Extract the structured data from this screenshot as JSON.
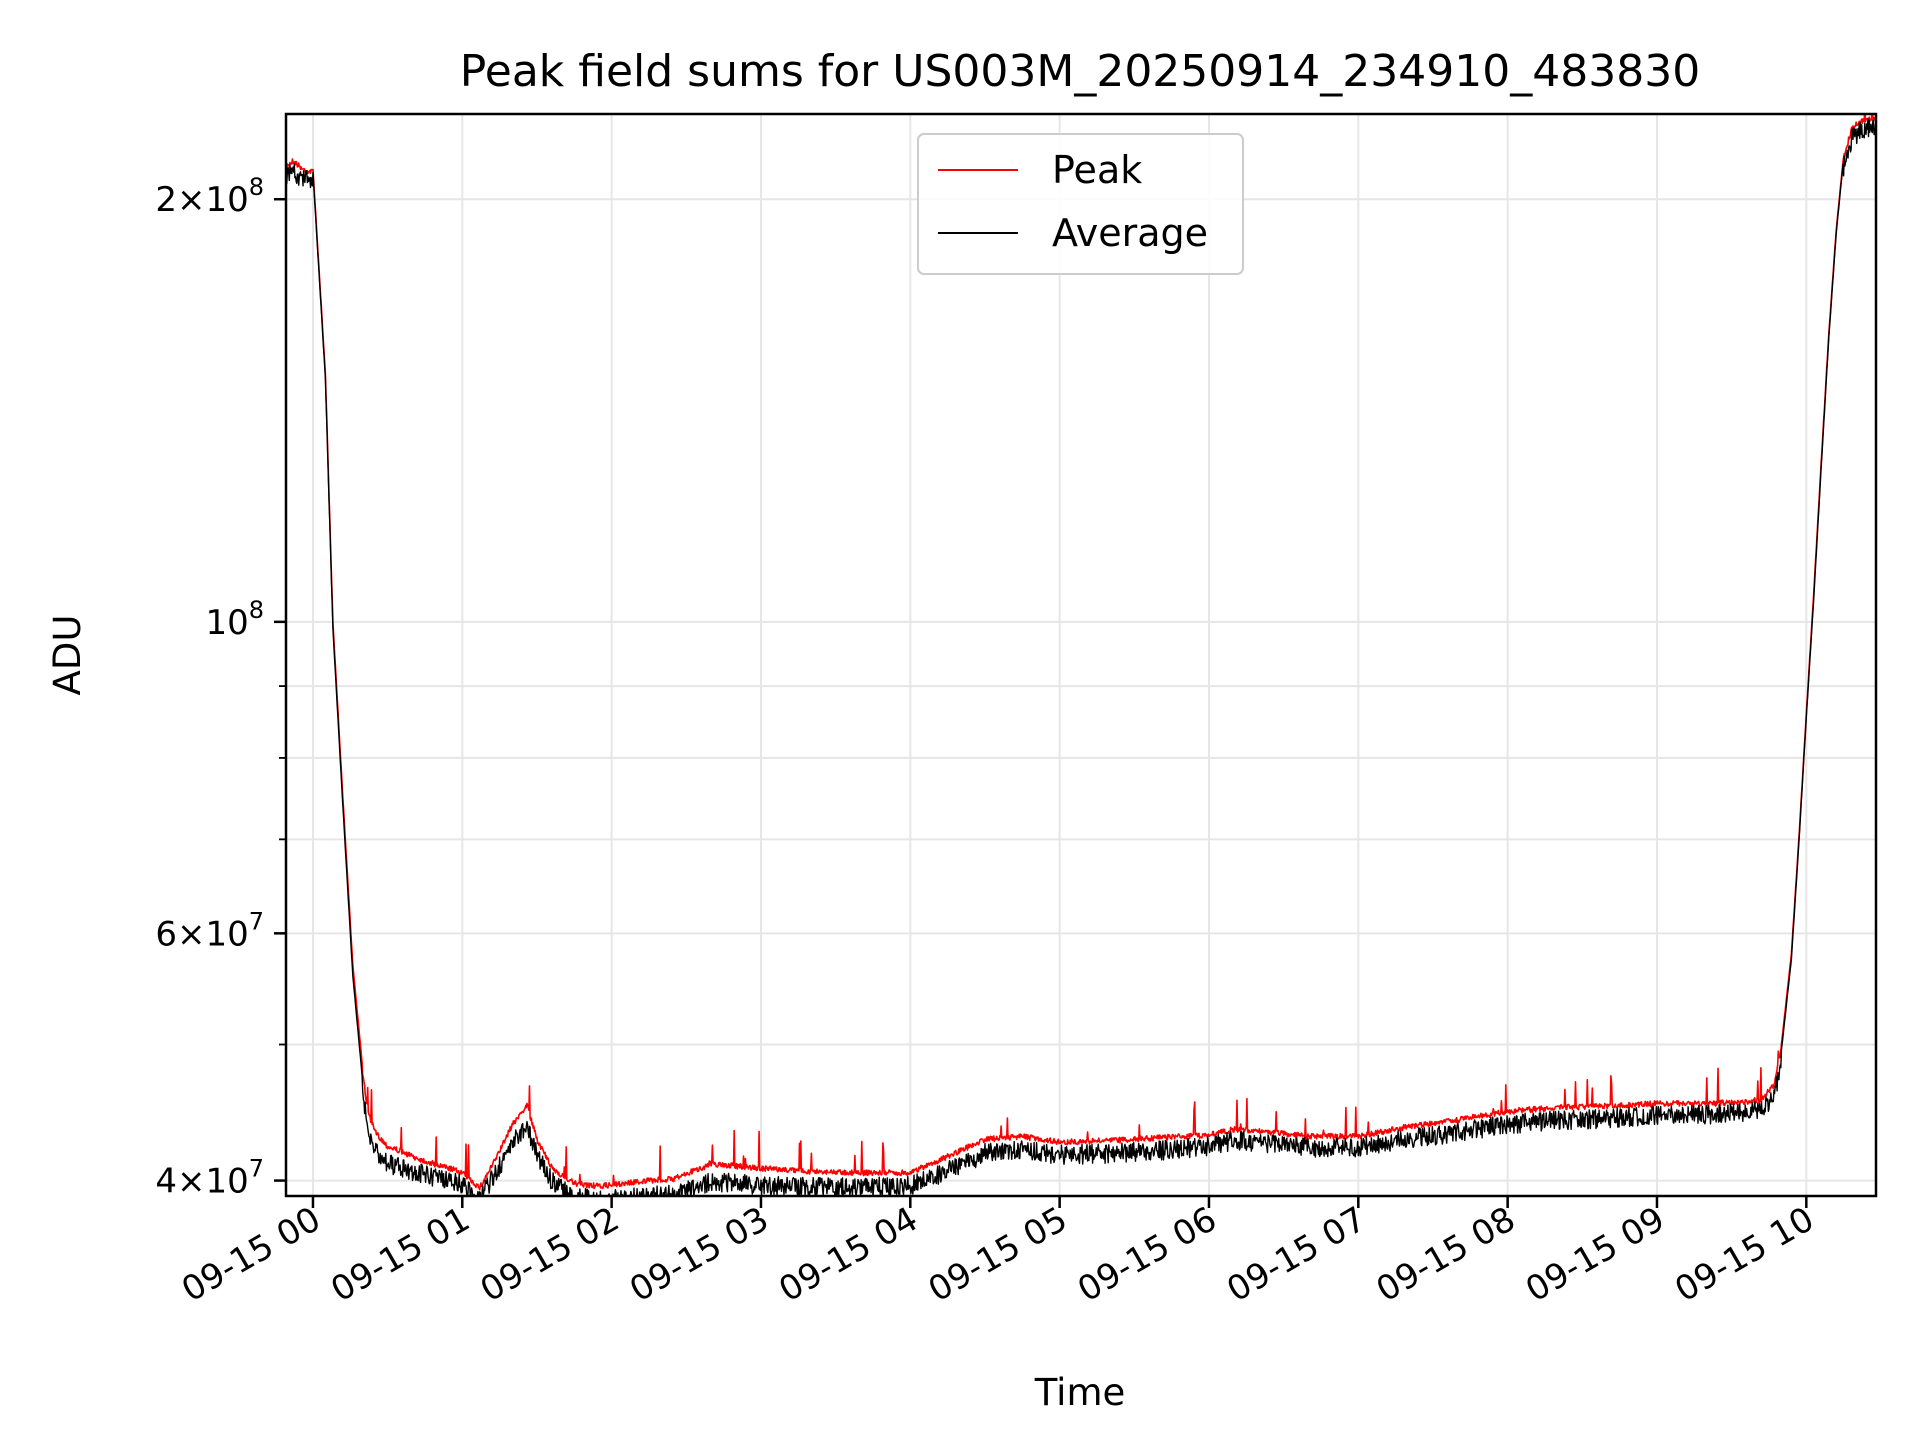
{
  "chart_data": {
    "type": "line",
    "title": "Peak field sums for US003M_20250914_234910_483830",
    "xlabel": "Time",
    "ylabel": "ADU",
    "yscale": "log",
    "ylim": [
      39000000,
      230000000
    ],
    "xlim": [
      "2025-09-14 23:49:10",
      "2025-09-15 10:28:00"
    ],
    "grid": true,
    "legend_position": "upper-center",
    "x_ticks": [
      {
        "value": "2025-09-15 00:00",
        "label": "09-15 00"
      },
      {
        "value": "2025-09-15 01:00",
        "label": "09-15 01"
      },
      {
        "value": "2025-09-15 02:00",
        "label": "09-15 02"
      },
      {
        "value": "2025-09-15 03:00",
        "label": "09-15 03"
      },
      {
        "value": "2025-09-15 04:00",
        "label": "09-15 04"
      },
      {
        "value": "2025-09-15 05:00",
        "label": "09-15 05"
      },
      {
        "value": "2025-09-15 06:00",
        "label": "09-15 06"
      },
      {
        "value": "2025-09-15 07:00",
        "label": "09-15 07"
      },
      {
        "value": "2025-09-15 08:00",
        "label": "09-15 08"
      },
      {
        "value": "2025-09-15 09:00",
        "label": "09-15 09"
      },
      {
        "value": "2025-09-15 10:00",
        "label": "09-15 10"
      }
    ],
    "y_major_ticks": [
      {
        "value": 40000000,
        "mantissa": "4",
        "exponent": "7"
      },
      {
        "value": 60000000,
        "mantissa": "6",
        "exponent": "7"
      },
      {
        "value": 100000000,
        "mantissa": "",
        "exponent": "8"
      },
      {
        "value": 200000000,
        "mantissa": "2",
        "exponent": "8"
      }
    ],
    "y_minor_ticks": [
      50000000,
      70000000,
      80000000,
      90000000
    ],
    "series": [
      {
        "name": "Peak",
        "color": "#ff0000",
        "x": [
          "2025-09-14 23:49",
          "2025-09-14 23:52",
          "2025-09-14 23:56",
          "2025-09-15 00:00",
          "2025-09-15 00:05",
          "2025-09-15 00:08",
          "2025-09-15 00:12",
          "2025-09-15 00:16",
          "2025-09-15 00:20",
          "2025-09-15 00:22",
          "2025-09-15 00:25",
          "2025-09-15 00:30",
          "2025-09-15 00:35",
          "2025-09-15 00:40",
          "2025-09-15 00:45",
          "2025-09-15 00:50",
          "2025-09-15 00:55",
          "2025-09-15 01:00",
          "2025-09-15 01:07",
          "2025-09-15 01:13",
          "2025-09-15 01:20",
          "2025-09-15 01:26",
          "2025-09-15 01:30",
          "2025-09-15 01:36",
          "2025-09-15 01:45",
          "2025-09-15 01:55",
          "2025-09-15 02:10",
          "2025-09-15 02:25",
          "2025-09-15 02:40",
          "2025-09-15 03:00",
          "2025-09-15 03:20",
          "2025-09-15 03:40",
          "2025-09-15 04:00",
          "2025-09-15 04:15",
          "2025-09-15 04:30",
          "2025-09-15 04:45",
          "2025-09-15 05:00",
          "2025-09-15 05:20",
          "2025-09-15 05:40",
          "2025-09-15 06:00",
          "2025-09-15 06:10",
          "2025-09-15 06:20",
          "2025-09-15 06:40",
          "2025-09-15 07:00",
          "2025-09-15 07:20",
          "2025-09-15 07:40",
          "2025-09-15 08:00",
          "2025-09-15 08:20",
          "2025-09-15 08:40",
          "2025-09-15 09:00",
          "2025-09-15 09:20",
          "2025-09-15 09:35",
          "2025-09-15 09:42",
          "2025-09-15 09:47",
          "2025-09-15 09:50",
          "2025-09-15 09:54",
          "2025-09-15 09:57",
          "2025-09-15 10:00",
          "2025-09-15 10:03",
          "2025-09-15 10:06",
          "2025-09-15 10:09",
          "2025-09-15 10:12",
          "2025-09-15 10:15",
          "2025-09-15 10:18",
          "2025-09-15 10:21",
          "2025-09-15 10:24",
          "2025-09-15 10:28"
        ],
        "values": [
          212000000,
          214000000,
          211000000,
          210000000,
          150000000,
          100000000,
          75000000,
          57000000,
          48000000,
          45000000,
          43500000,
          42500000,
          42200000,
          41800000,
          41500000,
          41200000,
          41000000,
          40700000,
          39700000,
          41500000,
          44000000,
          45500000,
          43000000,
          41000000,
          40000000,
          39800000,
          40100000,
          40300000,
          41300000,
          41000000,
          40800000,
          40700000,
          40700000,
          41800000,
          43000000,
          43200000,
          42800000,
          42900000,
          43100000,
          43300000,
          43700000,
          43600000,
          43200000,
          43200000,
          43900000,
          44400000,
          45000000,
          45300000,
          45400000,
          45600000,
          45600000,
          45700000,
          45900000,
          47000000,
          50000000,
          58000000,
          70000000,
          86000000,
          105000000,
          130000000,
          160000000,
          190000000,
          215000000,
          225000000,
          228000000,
          229000000,
          229000000
        ]
      },
      {
        "name": "Average",
        "color": "#000000",
        "x": [
          "2025-09-14 23:49",
          "2025-09-14 23:52",
          "2025-09-14 23:56",
          "2025-09-15 00:00",
          "2025-09-15 00:05",
          "2025-09-15 00:08",
          "2025-09-15 00:12",
          "2025-09-15 00:16",
          "2025-09-15 00:20",
          "2025-09-15 00:22",
          "2025-09-15 00:25",
          "2025-09-15 00:30",
          "2025-09-15 00:35",
          "2025-09-15 00:40",
          "2025-09-15 00:45",
          "2025-09-15 00:50",
          "2025-09-15 00:55",
          "2025-09-15 01:00",
          "2025-09-15 01:07",
          "2025-09-15 01:13",
          "2025-09-15 01:20",
          "2025-09-15 01:26",
          "2025-09-15 01:30",
          "2025-09-15 01:36",
          "2025-09-15 01:45",
          "2025-09-15 01:55",
          "2025-09-15 02:10",
          "2025-09-15 02:25",
          "2025-09-15 02:40",
          "2025-09-15 03:00",
          "2025-09-15 03:20",
          "2025-09-15 03:40",
          "2025-09-15 04:00",
          "2025-09-15 04:15",
          "2025-09-15 04:30",
          "2025-09-15 04:45",
          "2025-09-15 05:00",
          "2025-09-15 05:20",
          "2025-09-15 05:40",
          "2025-09-15 06:00",
          "2025-09-15 06:10",
          "2025-09-15 06:20",
          "2025-09-15 06:40",
          "2025-09-15 07:00",
          "2025-09-15 07:20",
          "2025-09-15 07:40",
          "2025-09-15 08:00",
          "2025-09-15 08:20",
          "2025-09-15 08:40",
          "2025-09-15 09:00",
          "2025-09-15 09:20",
          "2025-09-15 09:35",
          "2025-09-15 09:42",
          "2025-09-15 09:47",
          "2025-09-15 09:50",
          "2025-09-15 09:54",
          "2025-09-15 09:57",
          "2025-09-15 10:00",
          "2025-09-15 10:03",
          "2025-09-15 10:06",
          "2025-09-15 10:09",
          "2025-09-15 10:12",
          "2025-09-15 10:15",
          "2025-09-15 10:18",
          "2025-09-15 10:21",
          "2025-09-15 10:24",
          "2025-09-15 10:28"
        ],
        "values": [
          211000000,
          213000000,
          210000000,
          209000000,
          149000000,
          99000000,
          74000000,
          56000000,
          47000000,
          44000000,
          42800000,
          41800000,
          41600000,
          41300000,
          41000000,
          40800000,
          40600000,
          40400000,
          39500000,
          41000000,
          43200000,
          44500000,
          42400000,
          40600000,
          39600000,
          39400000,
          39600000,
          39800000,
          40600000,
          40300000,
          40200000,
          40200000,
          40300000,
          41300000,
          42500000,
          42800000,
          42400000,
          42500000,
          42700000,
          43000000,
          43400000,
          43300000,
          42900000,
          42900000,
          43500000,
          44000000,
          44600000,
          44900000,
          45000000,
          45200000,
          45300000,
          45400000,
          45600000,
          46600000,
          49500000,
          57500000,
          69500000,
          85500000,
          104000000,
          129000000,
          159000000,
          189000000,
          214000000,
          224000000,
          227000000,
          228500000,
          229000000
        ]
      }
    ]
  }
}
